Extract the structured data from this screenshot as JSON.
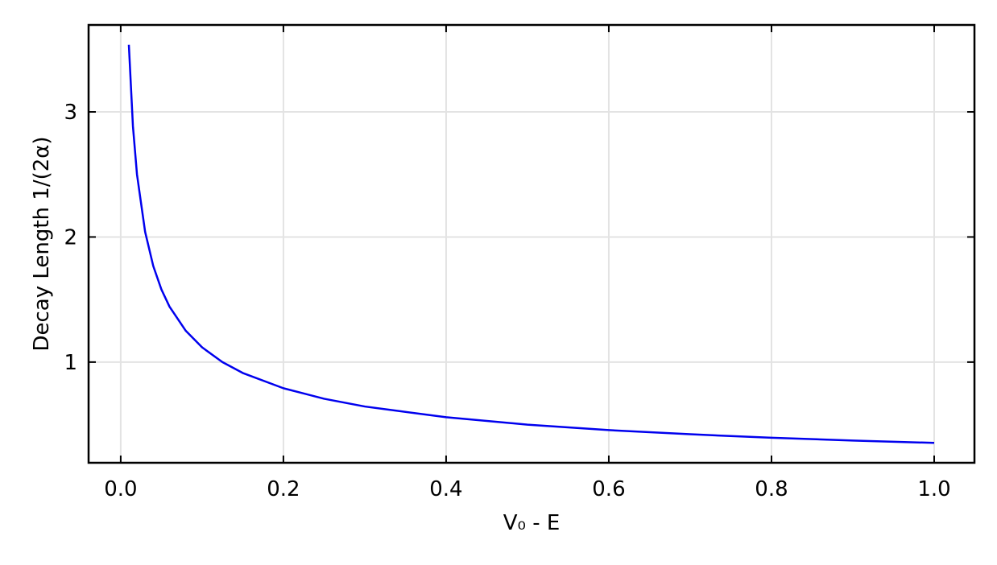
{
  "chart_data": {
    "type": "line",
    "x_label": "V₀ - E",
    "y_label": "Decay Length 1/(2α)",
    "x": [
      0.01,
      0.015,
      0.02,
      0.03,
      0.04,
      0.05,
      0.06,
      0.08,
      0.1,
      0.125,
      0.15,
      0.2,
      0.25,
      0.3,
      0.4,
      0.5,
      0.6,
      0.7,
      0.8,
      0.9,
      1.0
    ],
    "series": [
      {
        "color": "#0000ee",
        "values": [
          3.536,
          2.887,
          2.5,
          2.041,
          1.768,
          1.581,
          1.443,
          1.25,
          1.118,
          1.0,
          0.913,
          0.791,
          0.707,
          0.645,
          0.559,
          0.5,
          0.456,
          0.423,
          0.395,
          0.373,
          0.354
        ]
      }
    ],
    "xlim": [
      -0.0395,
      1.0495
    ],
    "ylim": [
      0.195,
      3.695
    ],
    "xticks": [
      {
        "value": 0,
        "label": "0.0"
      },
      0.2,
      0.4,
      0.6,
      0.8,
      {
        "value": 1,
        "label": "1.0"
      }
    ],
    "yticks": [
      1,
      2,
      3
    ],
    "grid": true
  }
}
